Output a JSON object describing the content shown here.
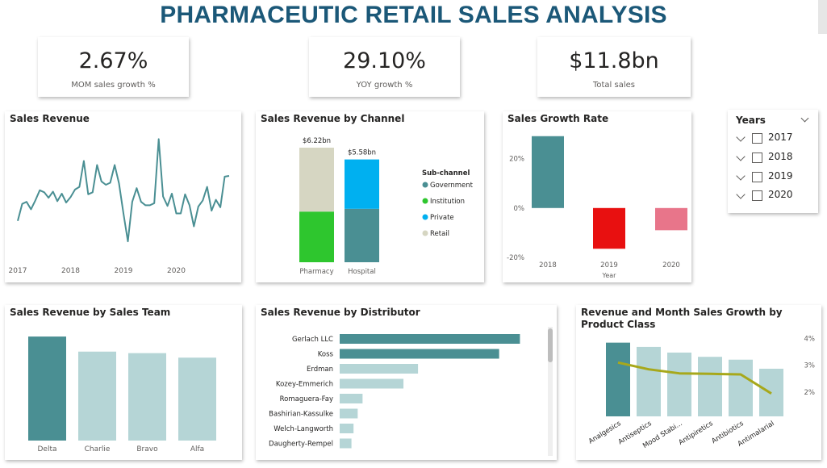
{
  "header": {
    "title": "PHARMACEUTIC RETAIL SALES ANALYSIS"
  },
  "kpis": [
    {
      "value": "2.67%",
      "label": "MOM sales growth %"
    },
    {
      "value": "29.10%",
      "label": "YOY growth %"
    },
    {
      "value": "$11.8bn",
      "label": "Total sales"
    }
  ],
  "slicer": {
    "title": "Years",
    "options": [
      "2017",
      "2018",
      "2019",
      "2020"
    ]
  },
  "colors": {
    "teal": "#4a8f93",
    "light_teal": "#b5d5d6",
    "green": "#2ec62e",
    "blue": "#00b0f0",
    "beige": "#d6d6c2",
    "red": "#e81010",
    "pink": "#e8758a",
    "olive": "#a7a81b",
    "title_blue": "#1b5878"
  },
  "chart_data": [
    {
      "id": "sales_revenue",
      "type": "line",
      "title": "Sales Revenue",
      "x_ticks": [
        "2017",
        "2018",
        "2019",
        "2020"
      ],
      "values": [
        2.0,
        4.5,
        4.8,
        3.7,
        5.0,
        6.5,
        6.2,
        5.4,
        6.3,
        4.9,
        6.0,
        4.7,
        5.5,
        6.6,
        7.0,
        10.8,
        5.9,
        6.2,
        10.2,
        7.8,
        7.3,
        7.6,
        10.2,
        7.5,
        3.1,
        -1.0,
        4.8,
        6.8,
        4.8,
        4.3,
        4.3,
        4.6,
        14.0,
        5.6,
        4.2,
        6.0,
        3.1,
        3.1,
        5.9,
        4.3,
        1.2,
        4.1,
        5.0,
        7.0,
        3.5,
        5.1,
        4.0,
        8.5,
        8.6
      ],
      "y_range": [
        -3,
        15
      ],
      "color": "#4a8f93"
    },
    {
      "id": "revenue_by_channel",
      "type": "bar",
      "stacked": true,
      "title": "Sales Revenue by Channel",
      "categories": [
        "Pharmacy",
        "Hospital"
      ],
      "totals_label": [
        "$6.22bn",
        "$5.58bn"
      ],
      "totals": [
        6.22,
        5.58
      ],
      "legend_title": "Sub-channel",
      "series": [
        {
          "name": "Government",
          "values": [
            0,
            2.9
          ],
          "color": "#4a8f93"
        },
        {
          "name": "Institution",
          "values": [
            2.75,
            0
          ],
          "color": "#2ec62e"
        },
        {
          "name": "Private",
          "values": [
            0,
            2.68
          ],
          "color": "#00b0f0"
        },
        {
          "name": "Retail",
          "values": [
            3.47,
            0
          ],
          "color": "#d6d6c2"
        }
      ]
    },
    {
      "id": "sales_growth_rate",
      "type": "bar",
      "title": "Sales Growth Rate",
      "categories": [
        "2018",
        "2019",
        "2020"
      ],
      "values": [
        29.1,
        -16.5,
        -9.0
      ],
      "value_unit": "%",
      "y_ticks": [
        "20%",
        "0%",
        "-20%"
      ],
      "y_range": [
        -20,
        30
      ],
      "xlabel": "Year",
      "colors": [
        "#4a8f93",
        "#e81010",
        "#e8758a"
      ]
    },
    {
      "id": "revenue_by_team",
      "type": "bar",
      "title": "Sales Revenue by Sales Team",
      "categories": [
        "Delta",
        "Charlie",
        "Bravo",
        "Alfa"
      ],
      "values": [
        3.45,
        2.95,
        2.9,
        2.75
      ],
      "y_range": [
        0,
        3.8
      ],
      "colors": [
        "#4a8f93",
        "#b5d5d6",
        "#b5d5d6",
        "#b5d5d6"
      ]
    },
    {
      "id": "revenue_by_distributor",
      "type": "bar",
      "orientation": "horizontal",
      "title": "Sales Revenue by Distributor",
      "categories": [
        "Gerlach LLC",
        "Koss",
        "Erdman",
        "Kozey-Emmerich",
        "Romaguera-Fay",
        "Bashirian-Kassulke",
        "Welch-Langworth",
        "Daugherty-Rempel"
      ],
      "values": [
        2.6,
        2.3,
        1.13,
        0.92,
        0.33,
        0.26,
        0.2,
        0.17
      ],
      "x_range": [
        0,
        2.7
      ],
      "colors": [
        "#4a8f93",
        "#4a8f93",
        "#b5d5d6",
        "#b5d5d6",
        "#b5d5d6",
        "#b5d5d6",
        "#b5d5d6",
        "#b5d5d6"
      ]
    },
    {
      "id": "revenue_growth_by_class",
      "type": "bar",
      "title": "Revenue and Month Sales Growth by Product Class",
      "categories": [
        "Analgesics",
        "Antiseptics",
        "Mood Stabi...",
        "Antipiretics",
        "Antibiotics",
        "Antimalarial"
      ],
      "series": [
        {
          "name": "Revenue",
          "type": "bar",
          "values": [
            2.6,
            2.45,
            2.25,
            2.1,
            2.0,
            1.68
          ],
          "colors": [
            "#4a8f93",
            "#b5d5d6",
            "#b5d5d6",
            "#b5d5d6",
            "#b5d5d6",
            "#b5d5d6"
          ]
        },
        {
          "name": "Month Sales Growth",
          "type": "line",
          "values": [
            3.1,
            2.85,
            2.7,
            2.68,
            2.66,
            1.95
          ],
          "color": "#a7a81b"
        }
      ],
      "y2_ticks": [
        "4%",
        "3%",
        "2%"
      ],
      "y2_range": [
        1.1,
        4.4
      ],
      "y_range": [
        0,
        3.7
      ]
    }
  ]
}
